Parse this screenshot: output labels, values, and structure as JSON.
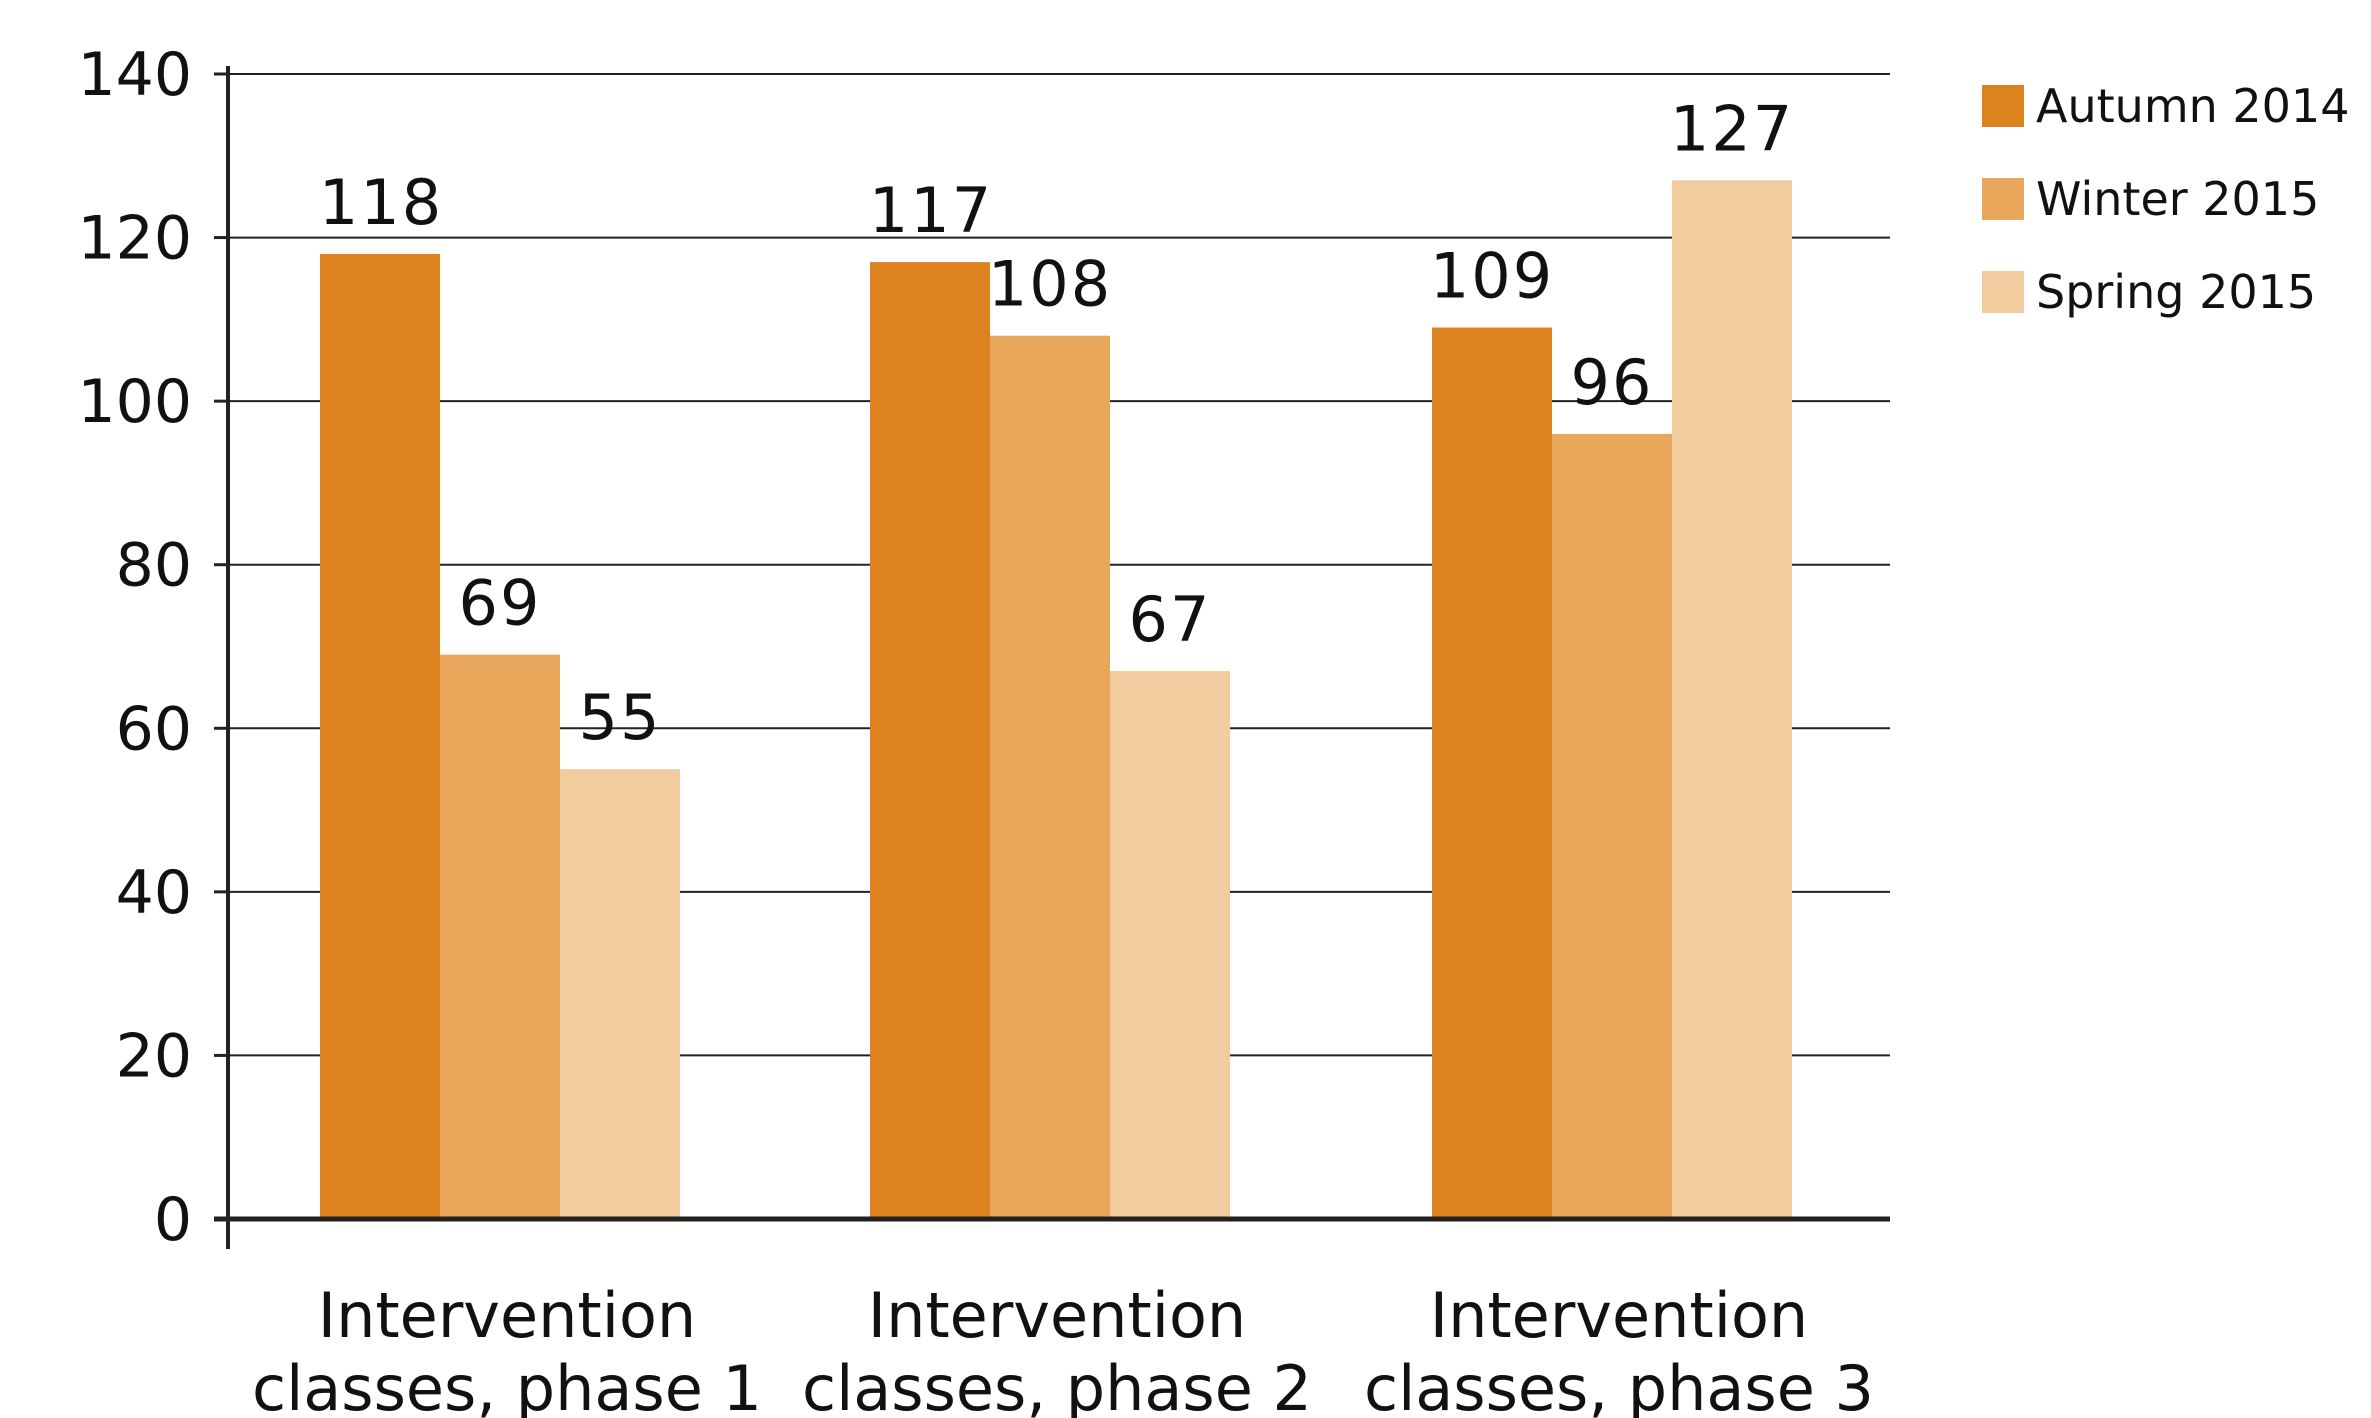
{
  "chart_data": {
    "type": "bar",
    "categories": [
      [
        "Intervention",
        "classes, phase 1"
      ],
      [
        "Intervention",
        "classes, phase 2"
      ],
      [
        "Intervention",
        "classes, phase 3"
      ]
    ],
    "series": [
      {
        "name": "Autumn 2014",
        "color": "#DC821E",
        "values": [
          118,
          117,
          109
        ]
      },
      {
        "name": "Winter 2015",
        "color": "#E8A75A",
        "values": [
          69,
          108,
          96
        ]
      },
      {
        "name": "Spring 2015",
        "color": "#F2CC9E",
        "values": [
          55,
          67,
          127
        ]
      }
    ],
    "ylim": [
      0,
      140
    ],
    "yticks": [
      0,
      20,
      40,
      60,
      80,
      100,
      120,
      140
    ],
    "grid": true,
    "legend": "top-right",
    "title": "",
    "xlabel": "",
    "ylabel": ""
  }
}
